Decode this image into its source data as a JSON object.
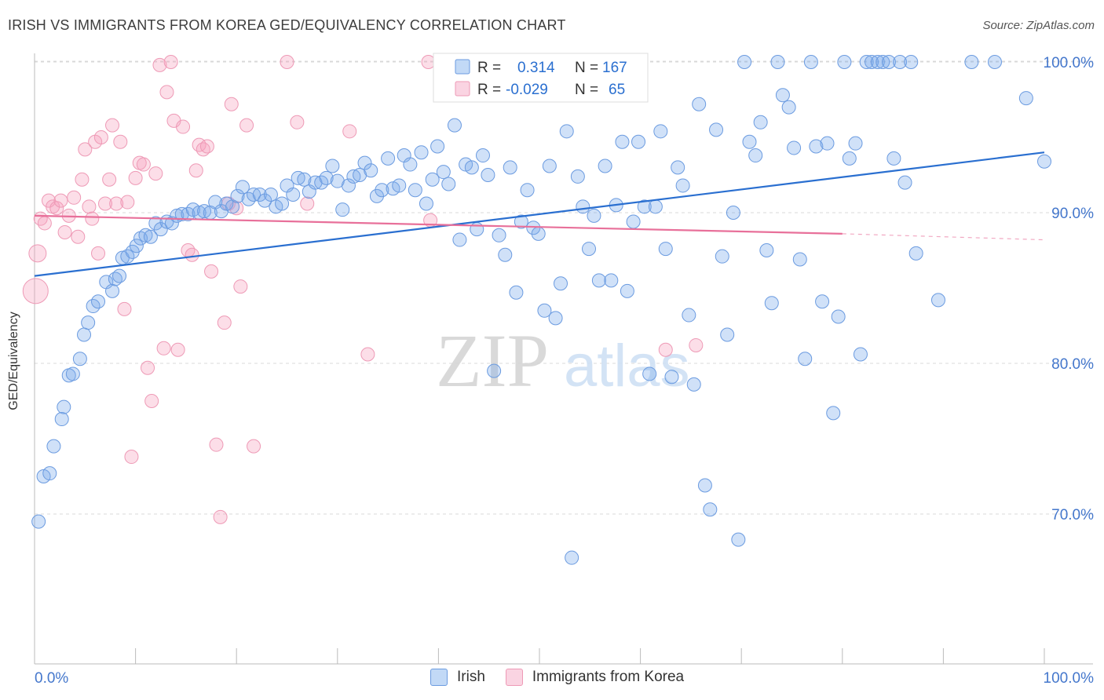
{
  "title": "IRISH VS IMMIGRANTS FROM KOREA GED/EQUIVALENCY CORRELATION CHART",
  "source": "Source: ZipAtlas.com",
  "watermark": {
    "zip": "ZIP",
    "atlas": "atlas"
  },
  "colors": {
    "irish_fill": "rgba(120,170,235,0.35)",
    "irish_stroke": "#6b9be0",
    "irish_line": "#2a6fd0",
    "korea_fill": "rgba(245,160,190,0.35)",
    "korea_stroke": "#ee9ab6",
    "korea_line": "#e8709a",
    "tick": "#4477cc"
  },
  "legend": {
    "r_label": "R =",
    "n_label": "N =",
    "irish_r": "0.314",
    "irish_n": "167",
    "korea_r": "-0.029",
    "korea_n": "65"
  },
  "bottom_legend": {
    "irish": "Irish",
    "korea": "Immigrants from Korea"
  },
  "chart_data": {
    "type": "scatter",
    "title": "IRISH VS IMMIGRANTS FROM KOREA GED/EQUIVALENCY CORRELATION CHART",
    "xlabel": "",
    "ylabel": "GED/Equivalency",
    "xlim": [
      0,
      100
    ],
    "ylim": [
      60.5,
      101.0
    ],
    "x_tick_labels": [
      "0.0%",
      "100.0%"
    ],
    "y_ticks": [
      70,
      80,
      90,
      100
    ],
    "y_tick_labels": [
      "70.0%",
      "80.0%",
      "90.0%",
      "100.0%"
    ],
    "grid": true,
    "series": [
      {
        "name": "Irish",
        "r": 0.314,
        "n": 167,
        "trend": {
          "x": [
            0,
            100
          ],
          "y": [
            85.8,
            94.0
          ]
        },
        "points": [
          [
            0.4,
            69.5
          ],
          [
            0.9,
            72.5
          ],
          [
            1.5,
            72.7
          ],
          [
            1.9,
            74.5
          ],
          [
            2.7,
            76.3
          ],
          [
            2.9,
            77.1
          ],
          [
            3.4,
            79.2
          ],
          [
            3.8,
            79.3
          ],
          [
            4.5,
            80.3
          ],
          [
            4.9,
            81.9
          ],
          [
            5.3,
            82.7
          ],
          [
            5.8,
            83.8
          ],
          [
            6.3,
            84.1
          ],
          [
            7.1,
            85.4
          ],
          [
            7.7,
            84.8
          ],
          [
            8.0,
            85.6
          ],
          [
            8.4,
            85.8
          ],
          [
            8.7,
            87.0
          ],
          [
            9.2,
            87.1
          ],
          [
            9.7,
            87.4
          ],
          [
            10.1,
            87.8
          ],
          [
            10.5,
            88.3
          ],
          [
            11.0,
            88.5
          ],
          [
            11.5,
            88.4
          ],
          [
            12.0,
            89.3
          ],
          [
            12.5,
            88.9
          ],
          [
            13.1,
            89.4
          ],
          [
            13.6,
            89.3
          ],
          [
            14.1,
            89.8
          ],
          [
            14.6,
            89.9
          ],
          [
            15.2,
            89.9
          ],
          [
            15.7,
            90.2
          ],
          [
            16.3,
            90.0
          ],
          [
            16.8,
            90.1
          ],
          [
            17.4,
            90.0
          ],
          [
            17.9,
            90.7
          ],
          [
            18.5,
            90.1
          ],
          [
            19.0,
            90.6
          ],
          [
            19.6,
            90.4
          ],
          [
            20.1,
            91.1
          ],
          [
            20.6,
            91.7
          ],
          [
            21.2,
            90.9
          ],
          [
            21.7,
            91.2
          ],
          [
            22.3,
            91.2
          ],
          [
            22.8,
            90.8
          ],
          [
            23.4,
            91.2
          ],
          [
            23.9,
            90.4
          ],
          [
            24.5,
            90.6
          ],
          [
            25.0,
            91.8
          ],
          [
            25.6,
            91.2
          ],
          [
            26.1,
            92.3
          ],
          [
            26.7,
            92.2
          ],
          [
            27.2,
            91.4
          ],
          [
            27.8,
            92.0
          ],
          [
            28.4,
            92.0
          ],
          [
            28.9,
            92.3
          ],
          [
            29.5,
            93.1
          ],
          [
            30.0,
            92.1
          ],
          [
            30.5,
            90.2
          ],
          [
            31.1,
            91.8
          ],
          [
            31.6,
            92.4
          ],
          [
            32.2,
            92.5
          ],
          [
            32.7,
            93.3
          ],
          [
            33.3,
            92.8
          ],
          [
            33.9,
            91.1
          ],
          [
            34.4,
            91.5
          ],
          [
            35.0,
            93.6
          ],
          [
            35.5,
            91.6
          ],
          [
            36.1,
            91.8
          ],
          [
            36.6,
            93.8
          ],
          [
            37.2,
            93.2
          ],
          [
            37.7,
            91.5
          ],
          [
            38.3,
            94.0
          ],
          [
            38.8,
            90.6
          ],
          [
            39.4,
            92.2
          ],
          [
            39.9,
            94.4
          ],
          [
            40.5,
            92.7
          ],
          [
            41.0,
            91.9
          ],
          [
            41.6,
            95.8
          ],
          [
            42.1,
            88.2
          ],
          [
            42.7,
            93.2
          ],
          [
            43.3,
            93.0
          ],
          [
            43.8,
            88.9
          ],
          [
            44.4,
            93.8
          ],
          [
            44.9,
            92.5
          ],
          [
            45.5,
            79.5
          ],
          [
            46.0,
            88.5
          ],
          [
            46.6,
            87.2
          ],
          [
            47.1,
            93.0
          ],
          [
            47.7,
            84.7
          ],
          [
            48.2,
            89.4
          ],
          [
            48.8,
            91.5
          ],
          [
            49.4,
            89.0
          ],
          [
            49.9,
            88.6
          ],
          [
            50.5,
            83.5
          ],
          [
            51.0,
            93.1
          ],
          [
            51.6,
            83.0
          ],
          [
            52.1,
            85.3
          ],
          [
            52.7,
            95.4
          ],
          [
            53.2,
            67.1
          ],
          [
            53.8,
            92.4
          ],
          [
            54.3,
            90.4
          ],
          [
            54.9,
            87.6
          ],
          [
            55.4,
            89.8
          ],
          [
            55.9,
            85.5
          ],
          [
            56.5,
            93.1
          ],
          [
            57.1,
            85.5
          ],
          [
            57.6,
            90.5
          ],
          [
            58.2,
            94.7
          ],
          [
            58.7,
            84.8
          ],
          [
            59.3,
            89.4
          ],
          [
            59.8,
            94.7
          ],
          [
            60.4,
            90.4
          ],
          [
            60.9,
            79.3
          ],
          [
            61.5,
            90.4
          ],
          [
            62.0,
            95.4
          ],
          [
            62.5,
            87.6
          ],
          [
            63.1,
            79.1
          ],
          [
            63.7,
            93.0
          ],
          [
            64.2,
            91.8
          ],
          [
            64.8,
            83.2
          ],
          [
            65.3,
            78.6
          ],
          [
            65.8,
            97.2
          ],
          [
            66.4,
            71.9
          ],
          [
            66.9,
            70.3
          ],
          [
            67.5,
            95.5
          ],
          [
            68.1,
            87.1
          ],
          [
            68.6,
            81.9
          ],
          [
            69.2,
            90.0
          ],
          [
            69.7,
            68.3
          ],
          [
            70.3,
            100.0
          ],
          [
            70.8,
            94.7
          ],
          [
            71.4,
            93.8
          ],
          [
            71.9,
            96.0
          ],
          [
            72.5,
            87.5
          ],
          [
            73.0,
            84.0
          ],
          [
            73.6,
            100.0
          ],
          [
            74.1,
            97.8
          ],
          [
            74.7,
            97.0
          ],
          [
            75.2,
            94.3
          ],
          [
            75.8,
            86.9
          ],
          [
            76.3,
            80.3
          ],
          [
            76.9,
            100.0
          ],
          [
            77.4,
            94.4
          ],
          [
            78.0,
            84.1
          ],
          [
            78.5,
            94.6
          ],
          [
            79.1,
            76.7
          ],
          [
            79.6,
            83.1
          ],
          [
            80.2,
            100.0
          ],
          [
            80.7,
            93.6
          ],
          [
            81.3,
            94.6
          ],
          [
            81.8,
            80.6
          ],
          [
            82.4,
            100.0
          ],
          [
            82.9,
            100.0
          ],
          [
            83.5,
            100.0
          ],
          [
            84.0,
            100.0
          ],
          [
            84.6,
            100.0
          ],
          [
            85.1,
            93.6
          ],
          [
            85.7,
            100.0
          ],
          [
            86.2,
            92.0
          ],
          [
            86.8,
            100.0
          ],
          [
            87.3,
            87.3
          ],
          [
            89.5,
            84.2
          ],
          [
            92.8,
            100.0
          ],
          [
            95.1,
            100.0
          ],
          [
            98.2,
            97.6
          ],
          [
            100.0,
            93.4
          ]
        ]
      },
      {
        "name": "Immigrants from Korea",
        "r": -0.029,
        "n": 65,
        "trend": {
          "x": [
            0,
            80
          ],
          "y": [
            89.8,
            88.6
          ]
        },
        "trend_dashed": {
          "x": [
            80,
            100
          ],
          "y": [
            88.6,
            88.2
          ]
        },
        "points": [
          [
            0.1,
            84.8
          ],
          [
            0.3,
            87.3
          ],
          [
            0.6,
            89.6
          ],
          [
            1.0,
            89.3
          ],
          [
            1.4,
            90.8
          ],
          [
            1.8,
            90.4
          ],
          [
            2.2,
            90.3
          ],
          [
            2.6,
            90.8
          ],
          [
            3.0,
            88.7
          ],
          [
            3.4,
            89.8
          ],
          [
            3.9,
            91.0
          ],
          [
            4.3,
            88.4
          ],
          [
            4.7,
            92.2
          ],
          [
            5.0,
            94.2
          ],
          [
            5.4,
            90.4
          ],
          [
            5.7,
            89.6
          ],
          [
            6.0,
            94.7
          ],
          [
            6.3,
            87.3
          ],
          [
            6.6,
            95.0
          ],
          [
            7.0,
            90.6
          ],
          [
            7.4,
            92.2
          ],
          [
            7.7,
            95.8
          ],
          [
            8.1,
            90.6
          ],
          [
            8.5,
            94.7
          ],
          [
            8.9,
            83.6
          ],
          [
            9.2,
            90.7
          ],
          [
            9.6,
            73.8
          ],
          [
            10.0,
            92.3
          ],
          [
            10.4,
            93.3
          ],
          [
            10.8,
            93.2
          ],
          [
            11.2,
            79.7
          ],
          [
            11.6,
            77.5
          ],
          [
            12.0,
            92.6
          ],
          [
            12.4,
            99.8
          ],
          [
            12.8,
            81.0
          ],
          [
            13.1,
            98.0
          ],
          [
            13.5,
            100.0
          ],
          [
            13.8,
            96.1
          ],
          [
            14.2,
            80.9
          ],
          [
            14.7,
            95.7
          ],
          [
            15.2,
            87.5
          ],
          [
            15.6,
            87.2
          ],
          [
            16.0,
            92.8
          ],
          [
            16.3,
            94.5
          ],
          [
            16.7,
            94.2
          ],
          [
            17.1,
            94.4
          ],
          [
            17.5,
            86.1
          ],
          [
            18.0,
            74.6
          ],
          [
            18.4,
            69.8
          ],
          [
            18.8,
            82.7
          ],
          [
            19.2,
            90.6
          ],
          [
            19.5,
            97.2
          ],
          [
            20.0,
            90.3
          ],
          [
            20.4,
            85.1
          ],
          [
            21.0,
            95.8
          ],
          [
            21.7,
            74.5
          ],
          [
            25.0,
            100.0
          ],
          [
            26.0,
            96.0
          ],
          [
            27.0,
            90.6
          ],
          [
            31.2,
            95.4
          ],
          [
            33.0,
            80.6
          ],
          [
            39.0,
            100.0
          ],
          [
            39.2,
            89.5
          ],
          [
            62.5,
            80.9
          ],
          [
            65.5,
            81.2
          ]
        ]
      }
    ]
  }
}
